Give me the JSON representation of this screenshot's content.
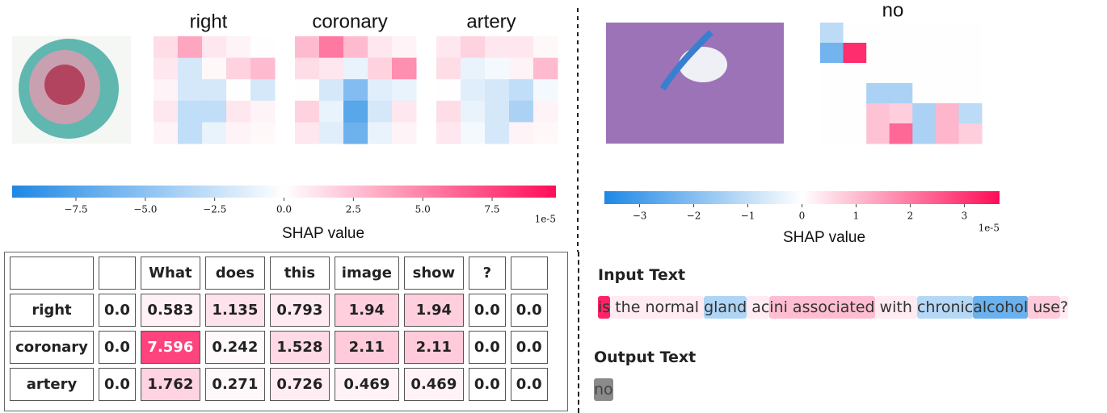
{
  "left_panel": {
    "image_heatmaps": [
      {
        "title": "right",
        "values": [
          [
            1.5,
            4,
            1,
            0.5,
            0
          ],
          [
            1,
            -2,
            0.3,
            2,
            3
          ],
          [
            0.5,
            -2,
            -2,
            0,
            -2
          ],
          [
            1,
            -3,
            -3,
            1,
            0.5
          ],
          [
            0.5,
            -3,
            -1,
            0.5,
            0.3
          ]
        ]
      },
      {
        "title": "coronary",
        "values": [
          [
            3,
            6,
            3,
            1,
            0.5
          ],
          [
            1.5,
            1,
            -1,
            2,
            5
          ],
          [
            0,
            -2,
            -6,
            -1.5,
            -1
          ],
          [
            2,
            -1,
            -8,
            -2,
            1
          ],
          [
            1,
            -1.5,
            -7,
            -1,
            0.5
          ]
        ]
      },
      {
        "title": "artery",
        "values": [
          [
            1,
            2,
            1,
            1,
            0.3
          ],
          [
            1.5,
            -1,
            -0.5,
            0.5,
            3
          ],
          [
            0,
            -1.5,
            -2,
            -3,
            -0.5
          ],
          [
            1.5,
            -1,
            -2,
            -4,
            0.5
          ],
          [
            1,
            -0.5,
            -2,
            0.5,
            0.3
          ]
        ]
      }
    ],
    "colorbar": {
      "lim": [
        -9.8,
        9.8
      ],
      "neg_color": "#1e88e5",
      "pos_color": "#ff0d57",
      "ticks": [
        {
          "value": -7.5,
          "label": "−7.5"
        },
        {
          "value": -5,
          "label": "−5.0"
        },
        {
          "value": -2.5,
          "label": "−2.5"
        },
        {
          "value": 0,
          "label": "0.0"
        },
        2.5,
        {
          "value": 5,
          "label": "5.0"
        },
        7.5
      ],
      "label": "SHAP value",
      "scale_label": "1e-5"
    },
    "table": {
      "header": [
        null,
        null,
        "What",
        "does",
        "this",
        "image",
        "show",
        "?",
        null
      ],
      "rows": [
        [
          "right",
          "0.0",
          "0.583",
          "1.135",
          "0.793",
          "1.94",
          "1.94",
          "0.0",
          "0.0"
        ],
        [
          "coronary",
          "0.0",
          "7.596",
          "0.242",
          "1.528",
          "2.11",
          "2.11",
          "0.0",
          "0.0"
        ],
        [
          "artery",
          "0.0",
          "1.762",
          "0.271",
          "0.726",
          "0.469",
          "0.469",
          "0.0",
          "0.0"
        ]
      ]
    }
  },
  "right_panel": {
    "heatmap": {
      "title": "no",
      "values": [
        [
          -1.2,
          0,
          0,
          0,
          0,
          0,
          0
        ],
        [
          -2.5,
          3.5,
          0,
          0,
          0,
          0,
          0
        ],
        [
          0,
          0,
          0,
          0,
          0,
          0,
          0
        ],
        [
          0,
          0,
          -1.5,
          -1.5,
          0,
          0,
          0
        ],
        [
          0,
          0,
          1,
          0.8,
          -1.5,
          1.2,
          -1.2
        ],
        [
          0,
          0,
          1,
          2.5,
          -1.5,
          1.2,
          0.8
        ]
      ]
    },
    "colorbar": {
      "lim": [
        -3.65,
        3.65
      ],
      "neg_color": "#1e88e5",
      "pos_color": "#ff0d57",
      "ticks": [
        {
          "value": -3,
          "label": "−3"
        },
        {
          "value": -2,
          "label": "−2"
        },
        {
          "value": -1,
          "label": "−1"
        },
        0,
        1,
        2,
        3
      ],
      "label": "SHAP value",
      "scale_label": "1e-5"
    },
    "input_text": {
      "title": "Input Text",
      "tokens": [
        {
          "text": "is",
          "value": 3.3
        },
        {
          "text": " the normal ",
          "value": 0.3
        },
        {
          "text": "gland",
          "value": -1.3
        },
        {
          "text": " ac",
          "value": 0.3
        },
        {
          "text": "ini associated",
          "value": 1.0
        },
        {
          "text": " with ",
          "value": 0.3
        },
        {
          "text": "chronic",
          "value": -1.2
        },
        {
          "text": "alcohol",
          "value": -2.4
        },
        {
          "text": " use",
          "value": 0.8
        },
        {
          "text": "?",
          "value": 0.3
        }
      ]
    },
    "output_text": {
      "title": "Output Text",
      "tokens": [
        {
          "text": "no"
        }
      ]
    }
  }
}
